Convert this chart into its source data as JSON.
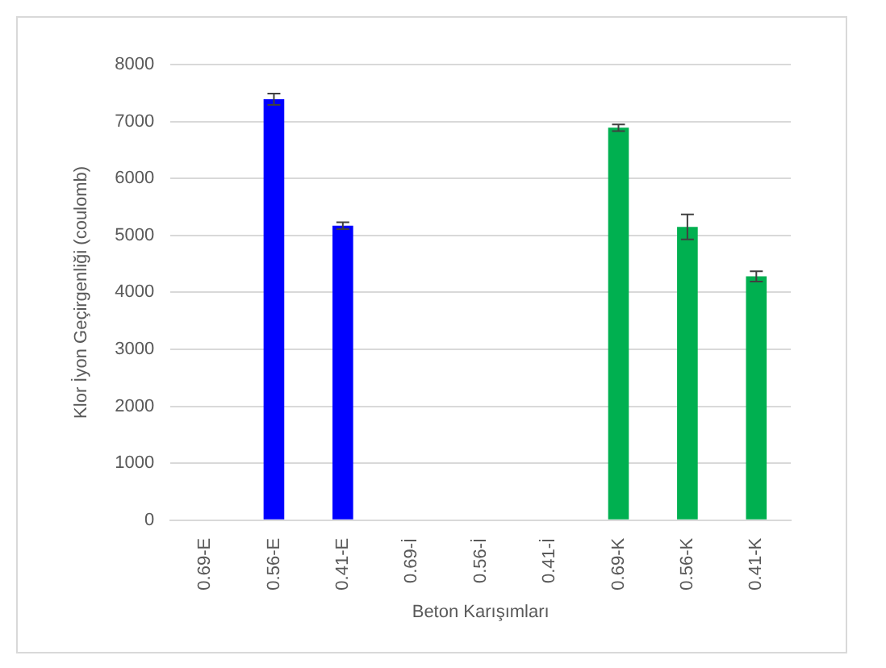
{
  "chart_data": {
    "type": "bar",
    "xlabel": "Beton Karışımları",
    "ylabel": "Klor İyon Geçirgenliği (coulomb)",
    "categories": [
      "0.69-E",
      "0.56-E",
      "0.41-E",
      "0.69-İ",
      "0.56-İ",
      "0.41-İ",
      "0.69-K",
      "0.56-K",
      "0.41-K"
    ],
    "values": [
      null,
      7390,
      5170,
      null,
      null,
      null,
      6890,
      5150,
      4280
    ],
    "errors": [
      null,
      100,
      60,
      null,
      null,
      null,
      60,
      220,
      90
    ],
    "colors": [
      "#0000ff",
      "#0000ff",
      "#0000ff",
      "#00b050",
      "#00b050",
      "#00b050",
      "#00b050",
      "#00b050",
      "#00b050"
    ],
    "ylim": [
      0,
      8000
    ],
    "yticks": [
      0,
      1000,
      2000,
      3000,
      4000,
      5000,
      6000,
      7000,
      8000
    ],
    "grid": "y",
    "legend": false
  }
}
